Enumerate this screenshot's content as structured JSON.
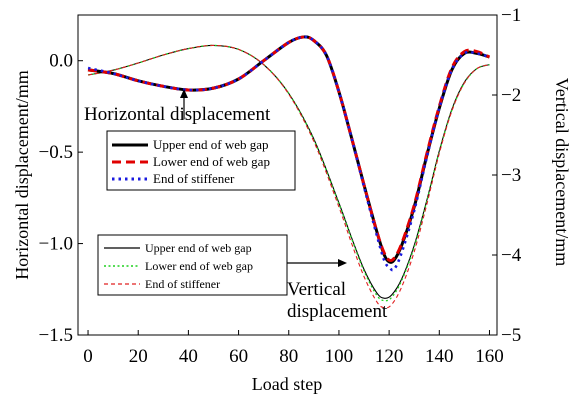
{
  "chart_data": {
    "type": "line",
    "xlabel": "Load step",
    "ylabel": "Horizontal displacement/mm",
    "y2label": "Vertical displacement/mm",
    "xlim": [
      -4,
      163
    ],
    "ylim": [
      -1.5,
      0.25
    ],
    "y2lim": [
      -5,
      -1
    ],
    "xticks": [
      0,
      20,
      40,
      60,
      80,
      100,
      120,
      140,
      160
    ],
    "yticks": [
      0.0,
      -0.5,
      -1.0,
      -1.5
    ],
    "ytick_labels": [
      "0.0",
      "−0.5",
      "−1.0",
      "−1.5"
    ],
    "y2ticks": [
      -1,
      -2,
      -3,
      -4,
      -5
    ],
    "y2tick_labels": [
      "−1",
      "−2",
      "−3",
      "−4",
      "−5"
    ],
    "grid": false,
    "annotations": [
      {
        "text": "Horizontal displacement",
        "x": 37,
        "y": -0.07
      },
      {
        "text": "Vertical",
        "x": 107,
        "y": -4.42
      },
      {
        "text": "displacement",
        "x": 107,
        "y": -4.62
      }
    ],
    "horizontal_series": [
      {
        "name": "Upper end of web gap",
        "color": "#000000",
        "style": "solid",
        "x": [
          0,
          10,
          20,
          30,
          40,
          50,
          60,
          70,
          80,
          86,
          90,
          95,
          100,
          105,
          110,
          115,
          118,
          120,
          122,
          125,
          130,
          135,
          140,
          145,
          150,
          155,
          160
        ],
        "y": [
          -0.05,
          -0.07,
          -0.11,
          -0.14,
          -0.16,
          -0.15,
          -0.1,
          0.0,
          0.1,
          0.13,
          0.11,
          0.03,
          -0.17,
          -0.42,
          -0.68,
          -0.93,
          -1.06,
          -1.1,
          -1.09,
          -1.01,
          -0.8,
          -0.52,
          -0.26,
          -0.05,
          0.04,
          0.04,
          0.02
        ]
      },
      {
        "name": "Lower end of web gap",
        "color": "#e00000",
        "style": "dashed",
        "x": [
          0,
          10,
          20,
          30,
          40,
          50,
          60,
          70,
          80,
          86,
          90,
          95,
          100,
          105,
          110,
          115,
          118,
          120,
          122,
          125,
          130,
          135,
          140,
          145,
          150,
          155,
          160
        ],
        "y": [
          -0.05,
          -0.07,
          -0.11,
          -0.14,
          -0.16,
          -0.15,
          -0.1,
          0.0,
          0.1,
          0.13,
          0.11,
          0.03,
          -0.17,
          -0.42,
          -0.68,
          -0.93,
          -1.05,
          -1.09,
          -1.08,
          -1.0,
          -0.79,
          -0.51,
          -0.25,
          -0.04,
          0.05,
          0.05,
          0.02
        ]
      },
      {
        "name": "End of stiffener",
        "color": "#1a1adf",
        "style": "dotted",
        "x": [
          0,
          10,
          20,
          30,
          40,
          50,
          60,
          70,
          80,
          86,
          90,
          95,
          100,
          105,
          110,
          115,
          118,
          120,
          122,
          125,
          130,
          135,
          140,
          145,
          150,
          155,
          160
        ],
        "y": [
          -0.04,
          -0.07,
          -0.11,
          -0.14,
          -0.16,
          -0.15,
          -0.1,
          0.0,
          0.1,
          0.13,
          0.11,
          0.03,
          -0.17,
          -0.42,
          -0.69,
          -0.95,
          -1.09,
          -1.13,
          -1.14,
          -1.05,
          -0.82,
          -0.53,
          -0.26,
          -0.05,
          0.04,
          0.04,
          0.02
        ]
      }
    ],
    "vertical_series": [
      {
        "name": "Upper end of web gap",
        "color": "#000000",
        "style": "solid",
        "x": [
          0,
          10,
          20,
          30,
          40,
          50,
          60,
          70,
          80,
          90,
          100,
          105,
          110,
          115,
          118,
          121,
          125,
          130,
          135,
          140,
          145,
          150,
          155,
          160
        ],
        "y": [
          -1.75,
          -1.69,
          -1.6,
          -1.5,
          -1.42,
          -1.38,
          -1.43,
          -1.62,
          -1.98,
          -2.55,
          -3.35,
          -3.78,
          -4.18,
          -4.47,
          -4.54,
          -4.5,
          -4.3,
          -3.88,
          -3.32,
          -2.7,
          -2.18,
          -1.84,
          -1.67,
          -1.62
        ]
      },
      {
        "name": "Lower end of web gap",
        "color": "#1fd01f",
        "style": "dotted",
        "x": [
          0,
          10,
          20,
          30,
          40,
          50,
          60,
          70,
          80,
          90,
          100,
          105,
          110,
          115,
          118,
          121,
          125,
          130,
          135,
          140,
          145,
          150,
          155,
          160
        ],
        "y": [
          -1.75,
          -1.69,
          -1.6,
          -1.5,
          -1.42,
          -1.38,
          -1.43,
          -1.62,
          -1.98,
          -2.56,
          -3.36,
          -3.79,
          -4.2,
          -4.5,
          -4.57,
          -4.53,
          -4.32,
          -3.9,
          -3.33,
          -2.71,
          -2.19,
          -1.85,
          -1.67,
          -1.62
        ]
      },
      {
        "name": "End of stiffener",
        "color": "#e02020",
        "style": "dashed",
        "x": [
          0,
          10,
          20,
          30,
          40,
          50,
          60,
          70,
          80,
          90,
          100,
          105,
          110,
          115,
          118,
          121,
          125,
          130,
          135,
          140,
          145,
          150,
          155,
          160
        ],
        "y": [
          -1.75,
          -1.69,
          -1.6,
          -1.5,
          -1.42,
          -1.38,
          -1.43,
          -1.62,
          -1.99,
          -2.58,
          -3.4,
          -3.85,
          -4.27,
          -4.58,
          -4.66,
          -4.62,
          -4.4,
          -3.96,
          -3.37,
          -2.73,
          -2.2,
          -1.85,
          -1.67,
          -1.62
        ]
      }
    ],
    "legend_horizontal": {
      "placement": "upper-left",
      "entries": [
        "Upper end of web gap",
        "Lower end of web gap",
        "End of stiffener"
      ]
    },
    "legend_vertical": {
      "placement": "lower-left",
      "entries": [
        "Upper end of web gap",
        "Lower end of web gap",
        "End of stiffener"
      ]
    }
  }
}
